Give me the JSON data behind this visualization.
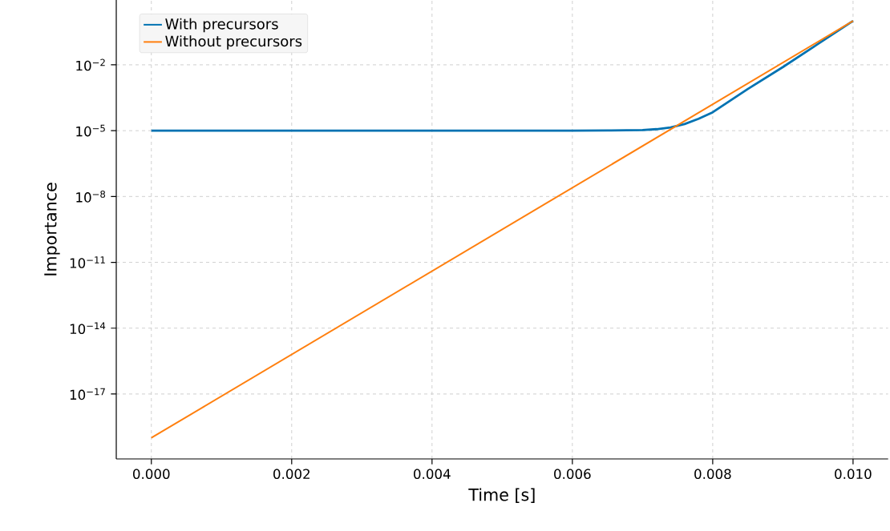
{
  "chart_data": {
    "type": "line",
    "xlabel": "Time [s]",
    "ylabel": "Importance",
    "log": "y",
    "grid": true,
    "legend": "top left",
    "marker": "none",
    "line_style": "solid",
    "x": [
      0,
      0.006,
      0.0065,
      0.007,
      0.0072,
      0.0074,
      0.0076,
      0.0078,
      0.008,
      0.0085,
      0.009,
      0.0095,
      0.01
    ],
    "series": [
      {
        "name": "With precursors",
        "color": "#0072b2",
        "values": [
          1e-05,
          1e-05,
          1.02e-05,
          1.07e-05,
          1.17e-05,
          1.41e-05,
          2e-05,
          3.5e-05,
          6.9e-05,
          0.00079,
          0.0079,
          0.089,
          1
        ]
      },
      {
        "name": "Without precursors",
        "color": "#ff7f0e",
        "x": [
          0,
          0.01
        ],
        "values": [
          1e-19,
          1
        ]
      }
    ],
    "xlim": [
      -0.0005,
      0.0105
    ],
    "ylim": [
      1.1e-20,
      9
    ],
    "xticks": [
      {
        "value": 0,
        "label": "0.000"
      },
      {
        "value": 0.002,
        "label": "0.002"
      },
      {
        "value": 0.004,
        "label": "0.004"
      },
      {
        "value": 0.006,
        "label": "0.006"
      },
      {
        "value": 0.008,
        "label": "0.008"
      },
      {
        "value": 0.01,
        "label": "0.010"
      }
    ],
    "yticks": [
      {
        "value": 1e-17,
        "label": "10$^{−17}$"
      },
      {
        "value": 1e-14,
        "label": "10$^{−14}$"
      },
      {
        "value": 1e-11,
        "label": "10$^{−11}$"
      },
      {
        "value": 1e-08,
        "label": "10$^{−8}$"
      },
      {
        "value": 1e-05,
        "label": "10$^{−5}$"
      },
      {
        "value": 0.01,
        "label": "10$^{−2}$"
      }
    ]
  }
}
